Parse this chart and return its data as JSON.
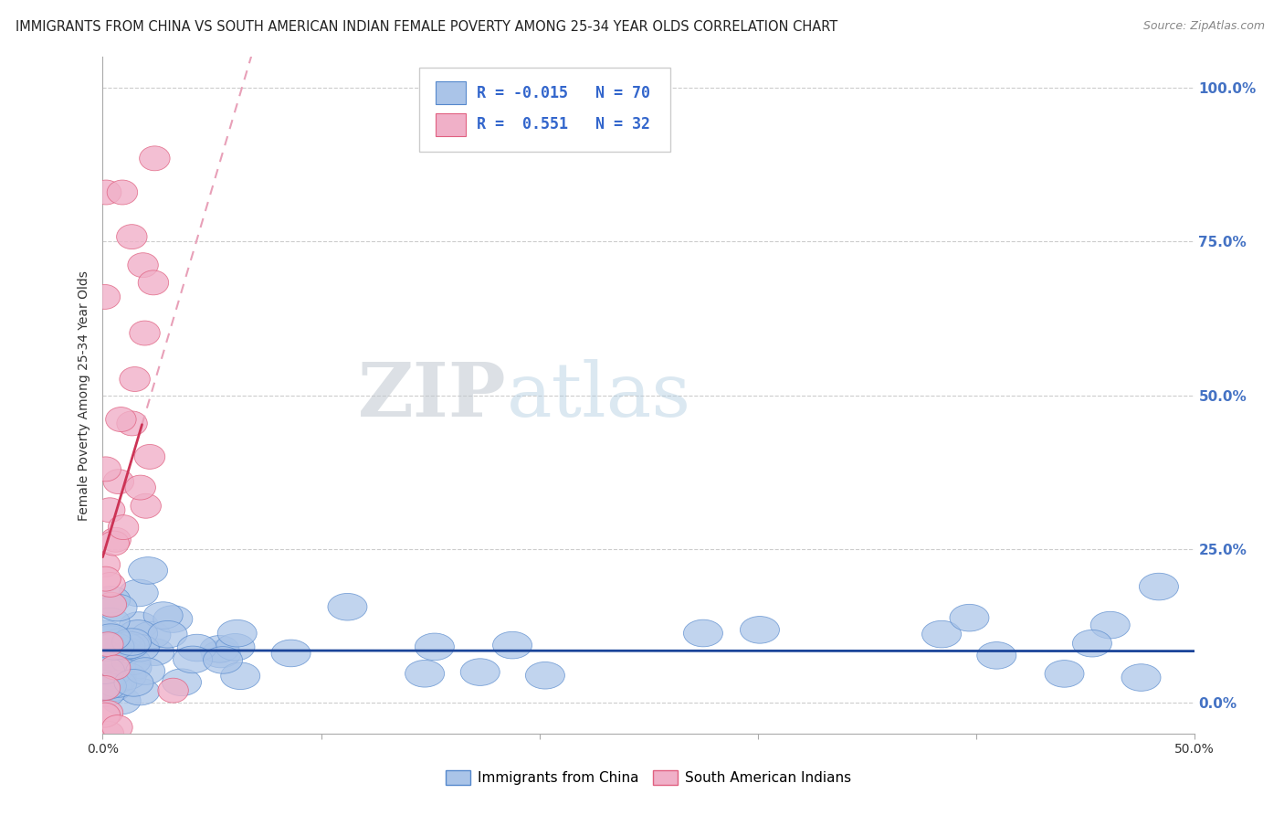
{
  "title": "IMMIGRANTS FROM CHINA VS SOUTH AMERICAN INDIAN FEMALE POVERTY AMONG 25-34 YEAR OLDS CORRELATION CHART",
  "source": "Source: ZipAtlas.com",
  "ylabel": "Female Poverty Among 25-34 Year Olds",
  "xlim": [
    0.0,
    0.5
  ],
  "ylim": [
    -0.05,
    1.05
  ],
  "background_color": "#ffffff",
  "grid_color": "#cccccc",
  "watermark_zip": "ZIP",
  "watermark_atlas": "atlas",
  "china_color": "#aac4e8",
  "china_edge_color": "#5588cc",
  "sa_indian_color": "#f0b0c8",
  "sa_indian_edge_color": "#e06080",
  "china_R": -0.015,
  "china_N": 70,
  "sa_indian_R": 0.551,
  "sa_indian_N": 32,
  "china_trendline_color": "#1a4499",
  "sa_indian_trendline_color": "#cc3355",
  "sa_indian_dashed_color": "#e8a0b8"
}
